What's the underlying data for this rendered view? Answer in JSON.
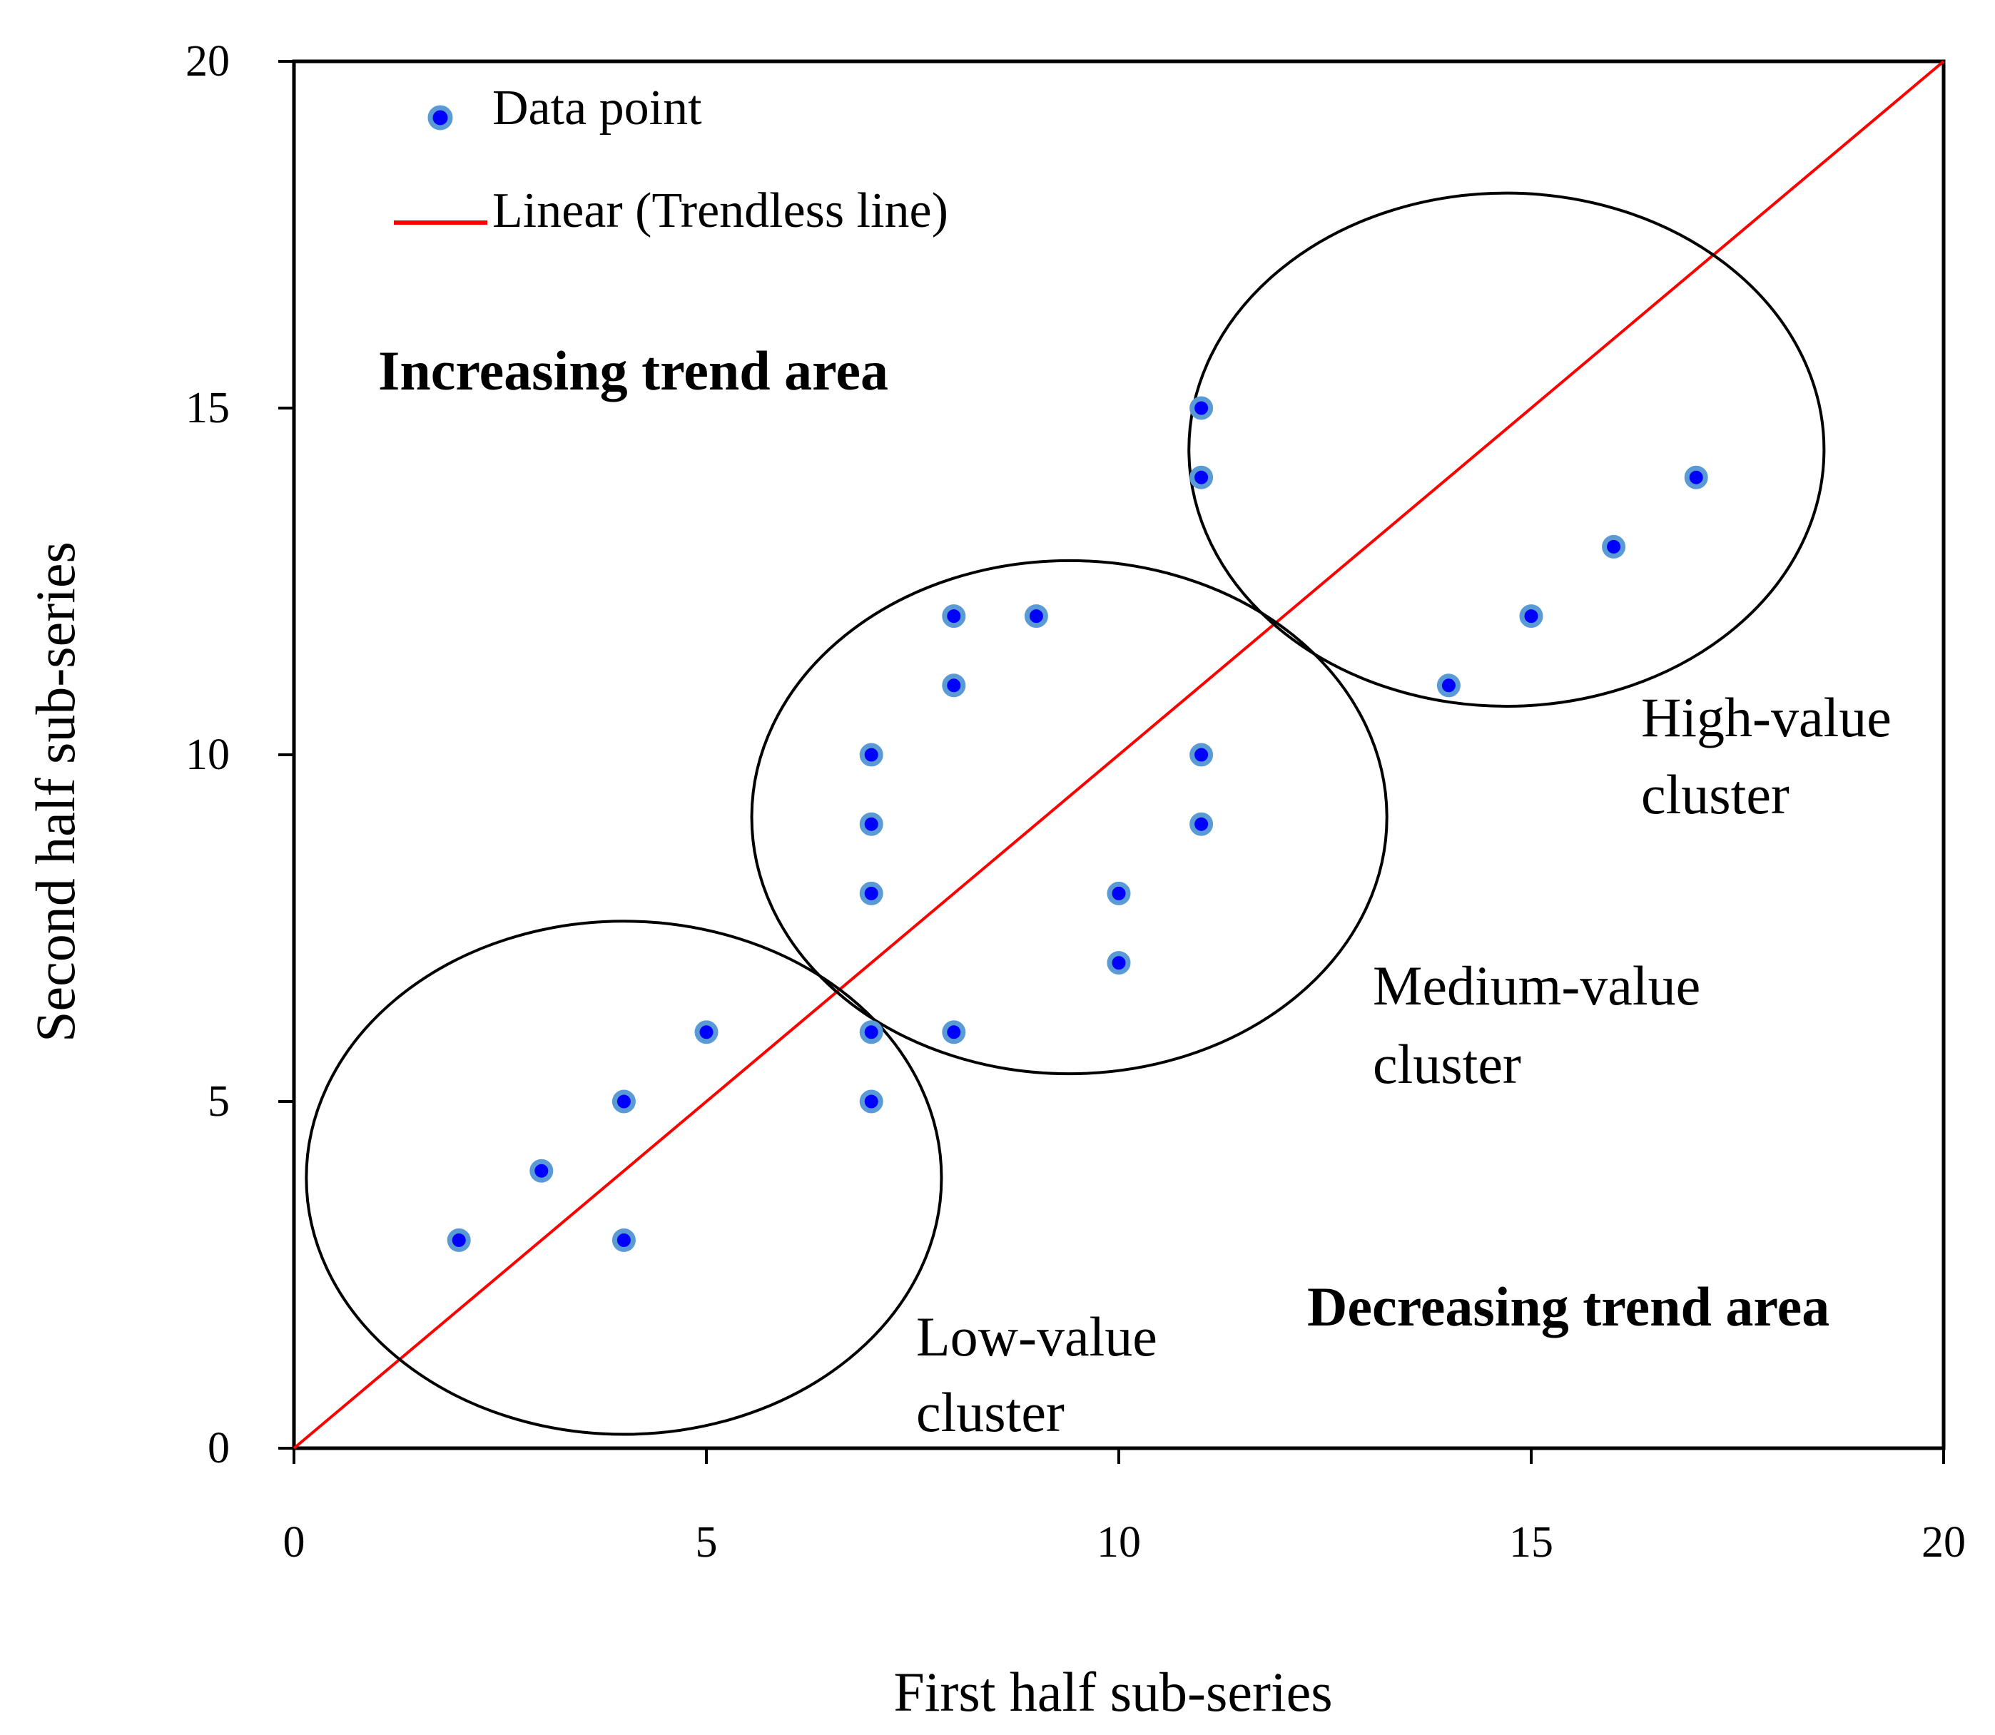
{
  "chart_data": {
    "type": "scatter",
    "title": "",
    "xlabel": "First half sub-series",
    "ylabel": "Second half sub-series",
    "xlim": [
      0,
      20
    ],
    "ylim": [
      0,
      20
    ],
    "xticks": [
      0,
      5,
      10,
      15,
      20
    ],
    "yticks": [
      0,
      5,
      10,
      15,
      20
    ],
    "grid": false,
    "legend_position": "top-left",
    "legend": [
      {
        "name": "Data point",
        "kind": "marker"
      },
      {
        "name": "Linear (Trendless line)",
        "kind": "line"
      }
    ],
    "series": [
      {
        "name": "Data point",
        "color": "#0000ff",
        "points": [
          {
            "x": 2,
            "y": 3
          },
          {
            "x": 3,
            "y": 4
          },
          {
            "x": 4,
            "y": 5
          },
          {
            "x": 4,
            "y": 3
          },
          {
            "x": 5,
            "y": 6
          },
          {
            "x": 7,
            "y": 6
          },
          {
            "x": 7,
            "y": 5
          },
          {
            "x": 7,
            "y": 10
          },
          {
            "x": 7,
            "y": 9
          },
          {
            "x": 7,
            "y": 8
          },
          {
            "x": 8,
            "y": 12
          },
          {
            "x": 8,
            "y": 11
          },
          {
            "x": 8,
            "y": 6
          },
          {
            "x": 9,
            "y": 12
          },
          {
            "x": 10,
            "y": 8
          },
          {
            "x": 10,
            "y": 7
          },
          {
            "x": 11,
            "y": 10
          },
          {
            "x": 11,
            "y": 9
          },
          {
            "x": 11,
            "y": 15
          },
          {
            "x": 11,
            "y": 14
          },
          {
            "x": 14,
            "y": 11
          },
          {
            "x": 15,
            "y": 12
          },
          {
            "x": 16,
            "y": 13
          },
          {
            "x": 17,
            "y": 14
          }
        ]
      },
      {
        "name": "Linear (Trendless line)",
        "color": "#ff0000",
        "line": [
          {
            "x": 0,
            "y": 0
          },
          {
            "x": 20,
            "y": 20
          }
        ]
      }
    ],
    "clusters": [
      {
        "label_line1": "Low-value",
        "label_line2": "cluster",
        "center": [
          4,
          3.9
        ],
        "radius_x": 3.85,
        "radius_y": 3.7
      },
      {
        "label_line1": "Medium-value",
        "label_line2": "cluster",
        "center": [
          9.4,
          9.1
        ],
        "radius_x": 3.85,
        "radius_y": 3.7
      },
      {
        "label_line1": "High-value",
        "label_line2": "cluster",
        "center": [
          14.7,
          14.4
        ],
        "radius_x": 3.85,
        "radius_y": 3.7
      }
    ],
    "annotations": [
      {
        "text": "Increasing trend area",
        "bold": true
      },
      {
        "text": "Decreasing trend area",
        "bold": true
      }
    ]
  }
}
